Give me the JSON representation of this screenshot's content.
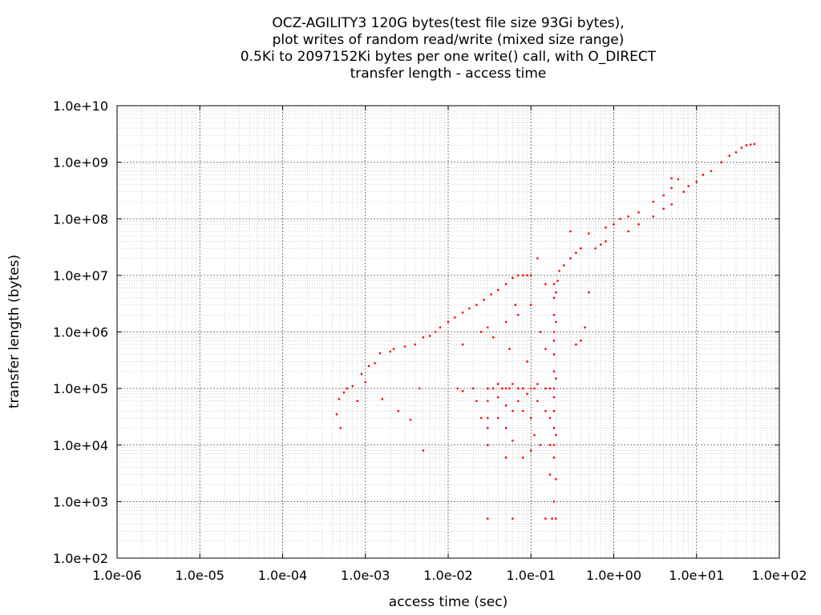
{
  "chart_data": {
    "type": "scatter",
    "title_lines": [
      "OCZ-AGILITY3 120G bytes(test file size 93Gi bytes),",
      "plot writes of random read/write (mixed size range)",
      "0.5Ki to 2097152Ki bytes per one write() call, with O_DIRECT",
      "transfer length - access time"
    ],
    "xlabel": "access time (sec)",
    "ylabel": "transfer length (bytes)",
    "x_scale": "log",
    "y_scale": "log",
    "xlim": [
      1e-06,
      100
    ],
    "ylim": [
      100,
      10000000000.0
    ],
    "x_tick_labels": [
      "1.0e-06",
      "1.0e-05",
      "1.0e-04",
      "1.0e-03",
      "1.0e-02",
      "1.0e-01",
      "1.0e+00",
      "1.0e+01",
      "1.0e+02"
    ],
    "y_tick_labels": [
      "1.0e+02",
      "1.0e+03",
      "1.0e+04",
      "1.0e+05",
      "1.0e+06",
      "1.0e+07",
      "1.0e+08",
      "1.0e+09",
      "1.0e+10"
    ],
    "grid": true,
    "legend": "none",
    "point_color": "#ff0000",
    "series": [
      {
        "values": [
          [
            0.00045,
            35000
          ],
          [
            0.00048,
            65000
          ],
          [
            0.0005,
            20000
          ],
          [
            0.00055,
            85000
          ],
          [
            0.0006,
            100000
          ],
          [
            0.0007,
            110000
          ],
          [
            0.0008,
            60000
          ],
          [
            0.0009,
            180000
          ],
          [
            0.001,
            130000
          ],
          [
            0.0011,
            250000
          ],
          [
            0.0013,
            280000
          ],
          [
            0.0015,
            420000
          ],
          [
            0.0016,
            65000
          ],
          [
            0.002,
            450000
          ],
          [
            0.0022,
            500000
          ],
          [
            0.0025,
            40000
          ],
          [
            0.003,
            550000
          ],
          [
            0.0035,
            28000
          ],
          [
            0.004,
            600000
          ],
          [
            0.0045,
            100000
          ],
          [
            0.005,
            8000
          ],
          [
            0.005,
            800000
          ],
          [
            0.006,
            850000
          ],
          [
            0.007,
            1000000
          ],
          [
            0.008,
            1200000
          ],
          [
            0.01,
            1500000
          ],
          [
            0.012,
            1800000
          ],
          [
            0.015,
            2200000
          ],
          [
            0.018,
            2600000
          ],
          [
            0.022,
            3000000
          ],
          [
            0.027,
            3700000
          ],
          [
            0.033,
            4600000
          ],
          [
            0.04,
            5500000
          ],
          [
            0.05,
            7000000
          ],
          [
            0.06,
            9000000
          ],
          [
            0.07,
            10000000
          ],
          [
            0.08,
            10000000
          ],
          [
            0.09,
            10000000
          ],
          [
            0.1,
            10000000
          ],
          [
            0.013,
            100000
          ],
          [
            0.015,
            90000
          ],
          [
            0.02,
            100000
          ],
          [
            0.022,
            60000
          ],
          [
            0.025,
            30000
          ],
          [
            0.03,
            100000
          ],
          [
            0.03,
            60000
          ],
          [
            0.03,
            30000
          ],
          [
            0.03,
            20000
          ],
          [
            0.03,
            10000
          ],
          [
            0.03,
            500
          ],
          [
            0.035,
            100000
          ],
          [
            0.04,
            120000
          ],
          [
            0.04,
            70000
          ],
          [
            0.04,
            30000
          ],
          [
            0.045,
            100000
          ],
          [
            0.05,
            100000
          ],
          [
            0.05,
            50000
          ],
          [
            0.05,
            20000
          ],
          [
            0.05,
            6000
          ],
          [
            0.055,
            100000
          ],
          [
            0.055,
            500000
          ],
          [
            0.06,
            120000
          ],
          [
            0.06,
            40000
          ],
          [
            0.06,
            12000
          ],
          [
            0.06,
            500
          ],
          [
            0.07,
            100000
          ],
          [
            0.07,
            60000
          ],
          [
            0.07,
            2000000
          ],
          [
            0.08,
            100000
          ],
          [
            0.08,
            40000
          ],
          [
            0.08,
            6000
          ],
          [
            0.09,
            300000
          ],
          [
            0.09,
            80000
          ],
          [
            0.1,
            100000
          ],
          [
            0.1,
            30000
          ],
          [
            0.1,
            8000
          ],
          [
            0.1,
            3000000
          ],
          [
            0.11,
            100000
          ],
          [
            0.11,
            15000
          ],
          [
            0.12,
            120000
          ],
          [
            0.12,
            60000
          ],
          [
            0.12,
            20000000
          ],
          [
            0.13,
            1000000
          ],
          [
            0.13,
            10000
          ],
          [
            0.15,
            7000000
          ],
          [
            0.15,
            500000
          ],
          [
            0.15,
            100000
          ],
          [
            0.15,
            40000
          ],
          [
            0.15,
            500
          ],
          [
            0.17,
            100000
          ],
          [
            0.17,
            30000
          ],
          [
            0.17,
            10000
          ],
          [
            0.17,
            3000
          ],
          [
            0.18,
            500
          ],
          [
            0.19,
            1000
          ],
          [
            0.19,
            6000
          ],
          [
            0.19,
            10000
          ],
          [
            0.19,
            20000
          ],
          [
            0.19,
            40000
          ],
          [
            0.19,
            70000
          ],
          [
            0.19,
            100000
          ],
          [
            0.19,
            200000
          ],
          [
            0.19,
            400000
          ],
          [
            0.19,
            700000
          ],
          [
            0.19,
            1000000
          ],
          [
            0.19,
            2000000
          ],
          [
            0.19,
            4000000
          ],
          [
            0.19,
            7000000
          ],
          [
            0.2,
            500
          ],
          [
            0.2,
            2500
          ],
          [
            0.2,
            15000
          ],
          [
            0.2,
            150000
          ],
          [
            0.2,
            1500000
          ],
          [
            0.2,
            5000000
          ],
          [
            0.21,
            8000000
          ],
          [
            0.22,
            12000000
          ],
          [
            0.25,
            15000000
          ],
          [
            0.3,
            20000000
          ],
          [
            0.35,
            25000000
          ],
          [
            0.4,
            30000000
          ],
          [
            0.4,
            700000
          ],
          [
            0.35,
            600000
          ],
          [
            0.45,
            1200000
          ],
          [
            0.5,
            5000000
          ],
          [
            0.6,
            30000000
          ],
          [
            0.7,
            35000000
          ],
          [
            0.8,
            40000000
          ],
          [
            0.3,
            60000000
          ],
          [
            0.5,
            55000000
          ],
          [
            0.8,
            70000000
          ],
          [
            1.0,
            80000000
          ],
          [
            1.2,
            100000000
          ],
          [
            1.5,
            110000000
          ],
          [
            2.0,
            130000000
          ],
          [
            3.0,
            200000000
          ],
          [
            4.0,
            260000000
          ],
          [
            5.0,
            350000000
          ],
          [
            5.0,
            520000000
          ],
          [
            6.0,
            500000000
          ],
          [
            1.5,
            60000000
          ],
          [
            2.0,
            80000000
          ],
          [
            3.0,
            110000000
          ],
          [
            4.0,
            150000000
          ],
          [
            5.0,
            180000000
          ],
          [
            7.0,
            300000000
          ],
          [
            10.0,
            450000000
          ],
          [
            15.0,
            700000000
          ],
          [
            20.0,
            1000000000
          ],
          [
            30.0,
            1500000000
          ],
          [
            40.0,
            2000000000
          ],
          [
            50.0,
            2100000000
          ],
          [
            8.0,
            380000000
          ],
          [
            12.0,
            600000000
          ],
          [
            25.0,
            1300000000
          ],
          [
            35.0,
            1800000000
          ],
          [
            45.0,
            2050000000
          ],
          [
            0.025,
            1000000
          ],
          [
            0.03,
            1200000
          ],
          [
            0.015,
            600000
          ],
          [
            0.035,
            800000
          ],
          [
            0.05,
            1500000
          ],
          [
            0.065,
            3000000
          ]
        ]
      }
    ]
  }
}
